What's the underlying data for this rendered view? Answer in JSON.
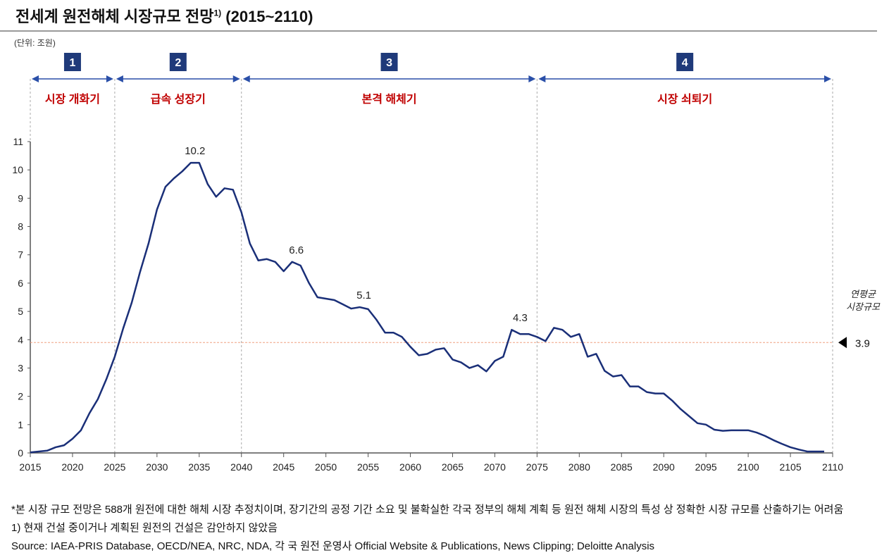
{
  "header": {
    "title": "전세계 원전해체 시장규모 전망",
    "title_superscript": "1)",
    "title_range": "(2015~2110)",
    "unit": "(단위: 조원)"
  },
  "colors": {
    "line": "#1a2f78",
    "phase_box": "#1f3a7a",
    "phase_label": "#c00000",
    "arrow": "#2a4fa8",
    "average_line": "#f0a080"
  },
  "phases": [
    {
      "number": "1",
      "label": "시장 개화기",
      "start": 2015,
      "end": 2025
    },
    {
      "number": "2",
      "label": "급속 성장기",
      "start": 2025,
      "end": 2040
    },
    {
      "number": "3",
      "label": "본격 해체기",
      "start": 2040,
      "end": 2075
    },
    {
      "number": "4",
      "label": "시장 쇠퇴기",
      "start": 2075,
      "end": 2110
    }
  ],
  "chart_data": {
    "type": "line",
    "title": "전세계 원전해체 시장규모 전망1) (2015~2110)",
    "ylabel": "(단위: 조원)",
    "xlim": [
      2015,
      2110
    ],
    "ylim": [
      0,
      11
    ],
    "x_ticks": [
      2015,
      2020,
      2025,
      2030,
      2035,
      2040,
      2045,
      2050,
      2055,
      2060,
      2065,
      2070,
      2075,
      2080,
      2085,
      2090,
      2095,
      2100,
      2105,
      2110
    ],
    "y_ticks": [
      0,
      1,
      2,
      3,
      4,
      5,
      6,
      7,
      8,
      9,
      10,
      11
    ],
    "grid": false,
    "x": [
      2015,
      2016,
      2017,
      2018,
      2019,
      2020,
      2021,
      2022,
      2023,
      2024,
      2025,
      2026,
      2027,
      2028,
      2029,
      2030,
      2031,
      2032,
      2033,
      2034,
      2035,
      2036,
      2037,
      2038,
      2039,
      2040,
      2041,
      2042,
      2043,
      2044,
      2045,
      2046,
      2047,
      2048,
      2049,
      2050,
      2051,
      2052,
      2053,
      2054,
      2055,
      2056,
      2057,
      2058,
      2059,
      2060,
      2061,
      2062,
      2063,
      2064,
      2065,
      2066,
      2067,
      2068,
      2069,
      2070,
      2071,
      2072,
      2073,
      2074,
      2075,
      2076,
      2077,
      2078,
      2079,
      2080,
      2081,
      2082,
      2083,
      2084,
      2085,
      2086,
      2087,
      2088,
      2089,
      2090,
      2091,
      2092,
      2093,
      2094,
      2095,
      2096,
      2097,
      2098,
      2099,
      2100,
      2101,
      2102,
      2103,
      2104,
      2105,
      2106,
      2107,
      2108,
      2109
    ],
    "values": [
      0.02,
      0.05,
      0.08,
      0.2,
      0.27,
      0.5,
      0.8,
      1.4,
      1.9,
      2.6,
      3.4,
      4.4,
      5.3,
      6.4,
      7.4,
      8.6,
      9.4,
      9.7,
      9.95,
      10.25,
      10.25,
      9.5,
      9.05,
      9.35,
      9.3,
      8.5,
      7.4,
      6.8,
      6.85,
      6.75,
      6.42,
      6.75,
      6.62,
      6.0,
      5.5,
      5.45,
      5.4,
      5.25,
      5.1,
      5.15,
      5.08,
      4.7,
      4.25,
      4.25,
      4.1,
      3.75,
      3.45,
      3.5,
      3.65,
      3.7,
      3.3,
      3.2,
      3.0,
      3.1,
      2.88,
      3.25,
      3.4,
      4.35,
      4.2,
      4.2,
      4.1,
      3.95,
      4.42,
      4.35,
      4.1,
      4.2,
      3.4,
      3.5,
      2.9,
      2.7,
      2.75,
      2.35,
      2.35,
      2.15,
      2.1,
      2.1,
      1.85,
      1.55,
      1.3,
      1.05,
      1.0,
      0.82,
      0.78,
      0.8,
      0.8,
      0.8,
      0.72,
      0.6,
      0.45,
      0.32,
      0.2,
      0.12,
      0.05,
      0.05,
      0.05
    ],
    "data_labels": [
      {
        "x": 2034.5,
        "y": 10.25,
        "text": "10.2"
      },
      {
        "x": 2046.5,
        "y": 6.75,
        "text": "6.6"
      },
      {
        "x": 2054.5,
        "y": 5.15,
        "text": "5.1"
      },
      {
        "x": 2073,
        "y": 4.35,
        "text": "4.3"
      }
    ],
    "average": {
      "value": 3.9,
      "label": "3.9",
      "caption_line1": "연평균",
      "caption_line2": "시장규모"
    }
  },
  "footnotes": {
    "note_star": "*본 시장 규모 전망은 588개 원전에 대한 해체 시장 추정치이며, 장기간의 공정 기간 소요 및 불확실한 각국 정부의 해체 계획 등 원전 해체 시장의 특성 상 정확한 시장 규모를 산출하기는 어려움",
    "note_1": "1) 현재 건설 중이거나 계획된 원전의 건설은 감안하지 않았음",
    "source": "Source: IAEA-PRIS Database, OECD/NEA, NRC, NDA, 각 국 원전 운영사 Official Website & Publications, News Clipping; Deloitte Analysis"
  }
}
